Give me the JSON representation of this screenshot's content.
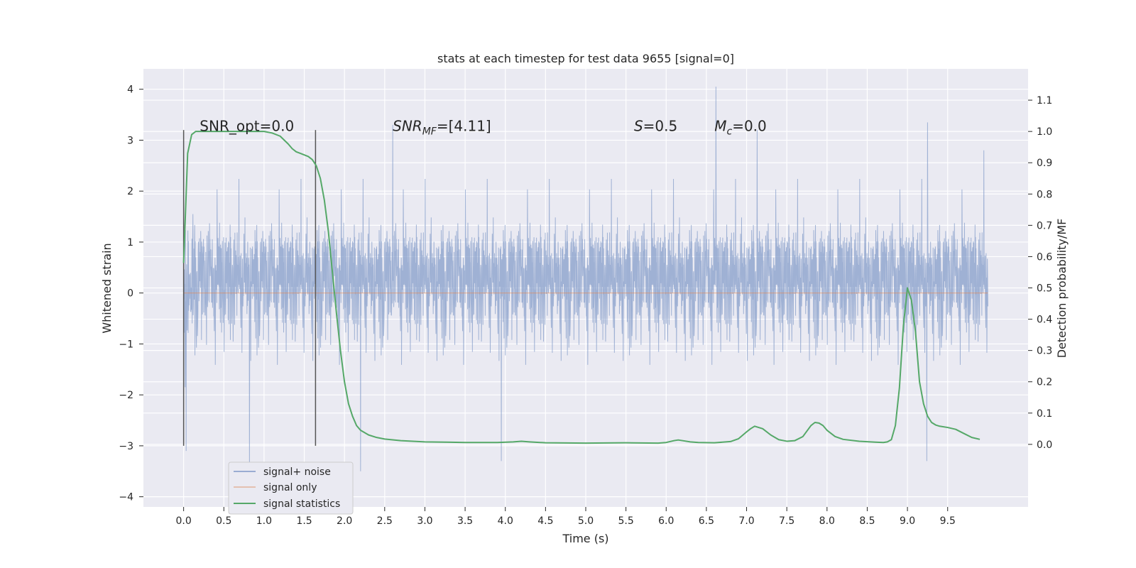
{
  "chart_data": {
    "type": "line",
    "title": "stats at each timestep for test data 9655 [signal=0]",
    "xlabel": "Time (s)",
    "ylabel": "Whitened strain",
    "ylabel_right": "Detection probability/MF",
    "xlim": [
      -0.5,
      10.5
    ],
    "ylim": [
      -4.2,
      4.4
    ],
    "ylim_right": [
      -0.2,
      1.2
    ],
    "x_ticks": [
      0.0,
      0.5,
      1.0,
      1.5,
      2.0,
      2.5,
      3.0,
      3.5,
      4.0,
      4.5,
      5.0,
      5.5,
      6.0,
      6.5,
      7.0,
      7.5,
      8.0,
      8.5,
      9.0,
      9.5
    ],
    "x_tick_labels": [
      "0.0",
      "0.5",
      "1.0",
      "1.5",
      "2.0",
      "2.5",
      "3.0",
      "3.5",
      "4.0",
      "4.5",
      "5.0",
      "5.5",
      "6.0",
      "6.5",
      "7.0",
      "7.5",
      "8.0",
      "8.5",
      "9.0",
      "9.5"
    ],
    "y_ticks": [
      4,
      3,
      2,
      1,
      0,
      -1,
      -2,
      -3,
      -4
    ],
    "y_tick_labels": [
      "4",
      "3",
      "2",
      "1",
      "0",
      "−1",
      "−2",
      "−3",
      "−4"
    ],
    "y_right_ticks": [
      1.1,
      1.0,
      0.9,
      0.8,
      0.7,
      0.6,
      0.5,
      0.4,
      0.3,
      0.2,
      0.1,
      0.0
    ],
    "y_right_tick_labels": [
      "1.1",
      "1.0",
      "0.9",
      "0.8",
      "0.7",
      "0.6",
      "0.5",
      "0.4",
      "0.3",
      "0.2",
      "0.1",
      "0.0"
    ],
    "grid": true,
    "legend_position": "lower-left",
    "series": [
      {
        "name": "signal+ noise",
        "color": "#7f98c8",
        "axis": "left",
        "x_range": [
          0.0,
          10.0
        ],
        "typical_band": [
          -1.15,
          1.35
        ],
        "peak_range": [
          -3.5,
          4.05
        ],
        "notable_peaks": [
          {
            "x": 0.02,
            "y": 3.4
          },
          {
            "x": 0.02,
            "y": -1.85
          },
          {
            "x": 0.82,
            "y": -3.5
          },
          {
            "x": 2.2,
            "y": -3.5
          },
          {
            "x": 2.6,
            "y": 3.3
          },
          {
            "x": 3.95,
            "y": -3.3
          },
          {
            "x": 6.62,
            "y": 4.05
          },
          {
            "x": 7.13,
            "y": 3.2
          },
          {
            "x": 9.25,
            "y": 3.35
          },
          {
            "x": 9.24,
            "y": -3.3
          },
          {
            "x": 9.95,
            "y": 2.8
          }
        ]
      },
      {
        "name": "signal only",
        "color": "#dd8452",
        "axis": "left",
        "x": [
          0.0,
          10.0
        ],
        "values": [
          0.0,
          0.0
        ]
      },
      {
        "name": "signal statistics",
        "color": "#55a868",
        "axis": "right",
        "x": [
          0.0,
          0.05,
          0.1,
          0.15,
          0.2,
          0.3,
          0.4,
          0.6,
          0.8,
          1.0,
          1.1,
          1.2,
          1.3,
          1.35,
          1.4,
          1.45,
          1.5,
          1.55,
          1.6,
          1.65,
          1.7,
          1.75,
          1.8,
          1.85,
          1.9,
          1.95,
          2.0,
          2.05,
          2.1,
          2.15,
          2.2,
          2.3,
          2.4,
          2.5,
          2.7,
          3.0,
          3.5,
          3.9,
          4.1,
          4.2,
          4.3,
          4.5,
          5.0,
          5.5,
          5.9,
          6.0,
          6.1,
          6.15,
          6.2,
          6.3,
          6.4,
          6.6,
          6.8,
          6.9,
          7.0,
          7.05,
          7.1,
          7.2,
          7.3,
          7.4,
          7.5,
          7.6,
          7.7,
          7.8,
          7.85,
          7.9,
          7.95,
          8.0,
          8.1,
          8.2,
          8.4,
          8.6,
          8.7,
          8.75,
          8.8,
          8.85,
          8.9,
          8.95,
          9.0,
          9.05,
          9.1,
          9.15,
          9.2,
          9.25,
          9.3,
          9.35,
          9.4,
          9.5,
          9.6,
          9.7,
          9.8,
          9.9
        ],
        "values": [
          0.58,
          0.93,
          0.99,
          1.0,
          1.0,
          1.0,
          1.0,
          1.0,
          1.0,
          1.0,
          0.995,
          0.985,
          0.96,
          0.945,
          0.935,
          0.93,
          0.925,
          0.92,
          0.91,
          0.89,
          0.85,
          0.78,
          0.68,
          0.55,
          0.42,
          0.3,
          0.2,
          0.13,
          0.09,
          0.06,
          0.045,
          0.03,
          0.022,
          0.017,
          0.012,
          0.008,
          0.006,
          0.006,
          0.008,
          0.01,
          0.008,
          0.005,
          0.004,
          0.005,
          0.004,
          0.006,
          0.012,
          0.014,
          0.012,
          0.008,
          0.006,
          0.005,
          0.009,
          0.018,
          0.04,
          0.05,
          0.058,
          0.05,
          0.03,
          0.015,
          0.01,
          0.012,
          0.025,
          0.06,
          0.07,
          0.068,
          0.06,
          0.045,
          0.025,
          0.016,
          0.01,
          0.007,
          0.006,
          0.008,
          0.015,
          0.06,
          0.18,
          0.38,
          0.5,
          0.46,
          0.36,
          0.2,
          0.13,
          0.09,
          0.07,
          0.062,
          0.058,
          0.054,
          0.048,
          0.035,
          0.022,
          0.016
        ]
      }
    ],
    "vertical_markers": [
      {
        "x": 0.0,
        "from": -3.0,
        "to": 3.2,
        "color": "#555555"
      },
      {
        "x": 1.64,
        "from": -3.0,
        "to": 3.2,
        "color": "#555555"
      }
    ],
    "annotations": [
      {
        "text": "SNR_opt=0.0",
        "x": 0.2,
        "y": 3.18
      },
      {
        "base": "SNR",
        "sub": "MF",
        "tail": "=[4.11]",
        "x": 2.6,
        "y": 3.18
      },
      {
        "base": "S",
        "sub": "",
        "tail": "=0.5",
        "x": 5.6,
        "y": 3.18
      },
      {
        "base": "M",
        "sub": "c",
        "tail": "=0.0",
        "x": 6.6,
        "y": 3.18
      }
    ]
  }
}
